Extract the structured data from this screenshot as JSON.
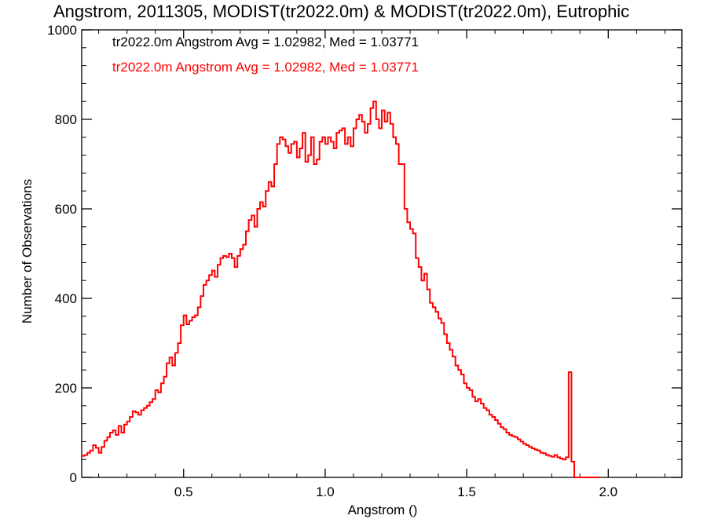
{
  "chart_data": {
    "type": "histogram",
    "title": "Angstrom, 2011305, MODIST(tr2022.0m) & MODIST(tr2022.0m), Eutrophic",
    "xlabel": "Angstrom ()",
    "ylabel": "Number of Observations",
    "xlim": [
      0.14,
      2.26
    ],
    "ylim": [
      0,
      1000
    ],
    "xticks": [
      0.5,
      1.0,
      1.5,
      2.0
    ],
    "xtick_labels": [
      "0.5",
      "1.0",
      "1.5",
      "2.0"
    ],
    "yticks": [
      0,
      200,
      400,
      600,
      800,
      1000
    ],
    "ytick_labels": [
      "0",
      "200",
      "400",
      "600",
      "800",
      "1000"
    ],
    "annotations": [
      {
        "text": "tr2022.0m Angstrom Avg = 1.02982, Med = 1.03771",
        "color": "#000000"
      },
      {
        "text": "tr2022.0m Angstrom Avg = 1.02982, Med = 1.03771",
        "color": "#ff0000"
      }
    ],
    "series": [
      {
        "color": "#ff0000",
        "bin_start": 0.14,
        "bin_width": 0.01,
        "values": [
          48,
          50,
          55,
          60,
          72,
          66,
          55,
          68,
          82,
          90,
          100,
          105,
          95,
          115,
          100,
          118,
          125,
          135,
          148,
          145,
          140,
          150,
          155,
          160,
          168,
          175,
          195,
          190,
          210,
          225,
          255,
          268,
          250,
          278,
          300,
          340,
          362,
          342,
          350,
          358,
          362,
          380,
          405,
          430,
          440,
          452,
          462,
          448,
          475,
          490,
          495,
          492,
          500,
          490,
          470,
          495,
          510,
          520,
          550,
          575,
          585,
          560,
          600,
          615,
          605,
          640,
          660,
          650,
          700,
          745,
          760,
          755,
          740,
          725,
          745,
          750,
          715,
          735,
          770,
          705,
          720,
          760,
          700,
          710,
          750,
          760,
          745,
          760,
          750,
          735,
          770,
          775,
          780,
          745,
          760,
          740,
          780,
          800,
          810,
          795,
          770,
          790,
          825,
          840,
          800,
          780,
          820,
          795,
          815,
          790,
          760,
          745,
          700,
          700,
          600,
          570,
          555,
          545,
          490,
          470,
          440,
          455,
          420,
          390,
          380,
          370,
          355,
          345,
          320,
          300,
          285,
          270,
          250,
          240,
          230,
          210,
          200,
          195,
          180,
          170,
          175,
          165,
          155,
          150,
          140,
          135,
          128,
          120,
          112,
          108,
          100,
          95,
          92,
          90,
          85,
          80,
          75,
          72,
          68,
          65,
          62,
          60,
          55,
          54,
          50,
          48,
          46,
          50,
          45,
          42,
          40,
          45,
          235,
          35,
          0,
          0,
          0,
          0,
          0,
          0,
          0,
          0,
          0
        ]
      }
    ]
  }
}
